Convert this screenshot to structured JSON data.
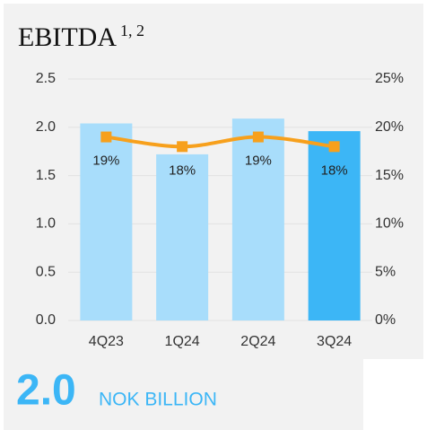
{
  "chart_data": {
    "type": "bar_line",
    "title": "EBITDA",
    "title_superscript": "1, 2",
    "categories": [
      "4Q23",
      "1Q24",
      "2Q24",
      "3Q24"
    ],
    "series": [
      {
        "type": "bar",
        "values": [
          2.04,
          1.72,
          2.09,
          1.96
        ],
        "colors": [
          "#a8ddfb",
          "#a8ddfb",
          "#a8ddfb",
          "#3cb6f6"
        ]
      },
      {
        "type": "line",
        "axis": "y2",
        "color": "#f7a01c",
        "values": [
          19,
          18,
          19,
          18
        ],
        "value_labels": [
          "19%",
          "18%",
          "19%",
          "18%"
        ]
      }
    ],
    "ylim": [
      0,
      2.5
    ],
    "yticks": [
      {
        "value": 0,
        "label": "0.0"
      },
      0.5,
      {
        "value": 1,
        "label": "1.0"
      },
      1.5,
      {
        "value": 2,
        "label": "2.0"
      },
      2.5
    ],
    "y2lim": [
      0,
      25
    ],
    "y2ticks": [
      {
        "value": 0,
        "label": "0%"
      },
      {
        "value": 5,
        "label": "5%"
      },
      {
        "value": 10,
        "label": "10%"
      },
      {
        "value": 15,
        "label": "15%"
      },
      {
        "value": 20,
        "label": "20%"
      },
      {
        "value": 25,
        "label": "25%"
      }
    ],
    "grid": true,
    "headline": {
      "value": "2.0",
      "unit": "NOK BILLION"
    }
  }
}
